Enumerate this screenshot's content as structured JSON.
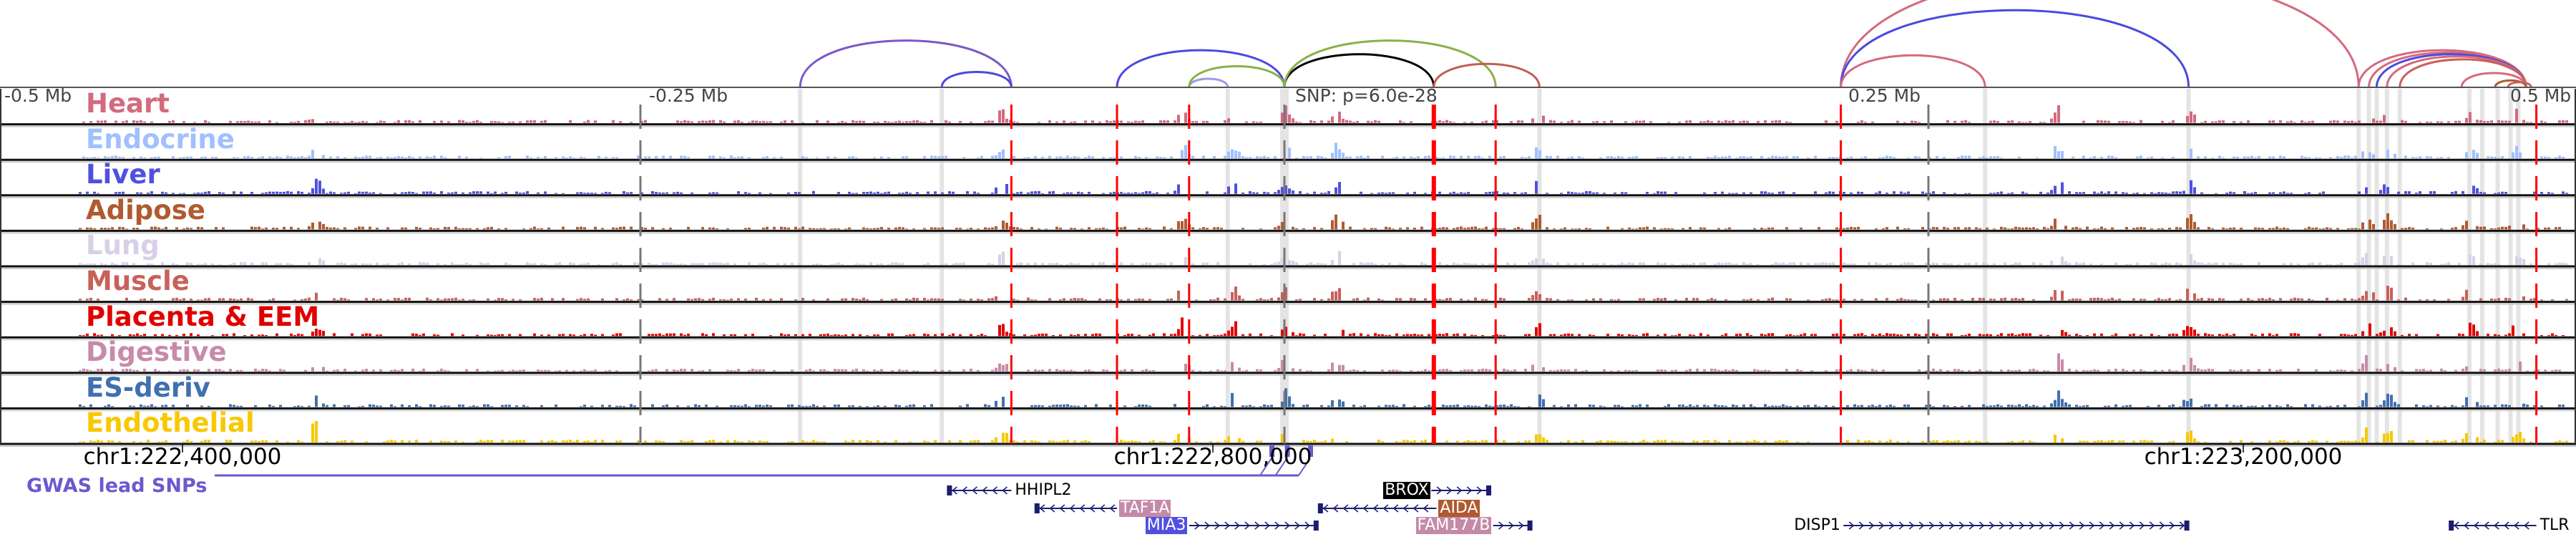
{
  "axis": {
    "labels": [
      {
        "text": "-0.5 Mb",
        "kb": -500
      },
      {
        "text": "-0.25 Mb",
        "kb": -250
      },
      {
        "text": "0.25 Mb",
        "kb": 250
      },
      {
        "text": "0.5 Mb",
        "kb": 500
      }
    ],
    "snp_label": "SNP: p=6.0e-28",
    "chr_ticks": [
      {
        "text": "chr1:222,400,000",
        "kb": -400
      },
      {
        "text": "chr1:222,800,000",
        "kb": 0
      },
      {
        "text": "chr1:223,200,000",
        "kb": 400
      }
    ]
  },
  "tracks": [
    {
      "label": "Heart",
      "color": "#d46a7e"
    },
    {
      "label": "Endocrine",
      "color": "#a0c0ff"
    },
    {
      "label": "Liver",
      "color": "#5050e0"
    },
    {
      "label": "Adipose",
      "color": "#b05a30"
    },
    {
      "label": "Lung",
      "color": "#d8d0e8"
    },
    {
      "label": "Muscle",
      "color": "#c8605a"
    },
    {
      "label": "Placenta & EEM",
      "color": "#e00000"
    },
    {
      "label": "Digestive",
      "color": "#c88aaa"
    },
    {
      "label": "ES-deriv",
      "color": "#4070b0"
    },
    {
      "label": "Endothelial",
      "color": "#f8c800"
    }
  ],
  "red_lines_kb": [
    -106,
    -65,
    -37,
    58,
    82,
    216,
    486
  ],
  "thick_red_lines_kb": [
    58
  ],
  "gray_dashed_kb": [
    -250,
    0,
    250
  ],
  "gray_bands_kb": [
    -188,
    -133,
    -22,
    0,
    99,
    272,
    351,
    417,
    421,
    424,
    428,
    433,
    460,
    465,
    471,
    476,
    479
  ],
  "signal_peaks_kb": [
    -376,
    -110,
    -40,
    -20,
    0,
    20,
    98,
    300,
    351,
    420,
    428,
    460,
    478
  ],
  "loops": [
    {
      "start": -188,
      "end": -106,
      "color": "#7a58c8"
    },
    {
      "start": -133,
      "end": -106,
      "color": "#4a4ae0"
    },
    {
      "start": -65,
      "end": 0,
      "color": "#4a4ae0"
    },
    {
      "start": -37,
      "end": -22,
      "color": "#9a9ae8"
    },
    {
      "start": -37,
      "end": 0,
      "color": "#8ab04a"
    },
    {
      "start": 0,
      "end": 58,
      "color": "#000000"
    },
    {
      "start": 0,
      "end": 82,
      "color": "#8ab04a"
    },
    {
      "start": 58,
      "end": 99,
      "color": "#c06050"
    },
    {
      "start": 216,
      "end": 417,
      "color": "#d46a7e"
    },
    {
      "start": 216,
      "end": 351,
      "color": "#4a4ae0"
    },
    {
      "start": 216,
      "end": 272,
      "color": "#d46a7e"
    },
    {
      "start": 417,
      "end": 482,
      "color": "#d46a7e"
    },
    {
      "start": 421,
      "end": 482,
      "color": "#d46a7e"
    },
    {
      "start": 424,
      "end": 482,
      "color": "#4a4ae0"
    },
    {
      "start": 428,
      "end": 482,
      "color": "#d46a7e"
    },
    {
      "start": 433,
      "end": 482,
      "color": "#c8605a"
    },
    {
      "start": 457,
      "end": 482,
      "color": "#d46a7e"
    },
    {
      "start": 470,
      "end": 482,
      "color": "#b05a30"
    },
    {
      "start": 475,
      "end": 484,
      "color": "#c8605a"
    }
  ],
  "gwas": {
    "label": "GWAS lead SNPs",
    "color": "#6a5acd",
    "snps_kb": [
      -5,
      1,
      10
    ]
  },
  "genes": [
    {
      "name": "HHIPL2",
      "start": -131,
      "end": -106,
      "strand": "-",
      "row": 0,
      "label_side": "right",
      "bg": "",
      "fg": "#000000"
    },
    {
      "name": "TAF1A",
      "start": -97,
      "end": -65,
      "strand": "-",
      "row": 1,
      "label_side": "right",
      "bg": "#c48aa8",
      "fg": "#ffffff"
    },
    {
      "name": "MIA3",
      "start": -37,
      "end": 13,
      "strand": "+",
      "row": 2,
      "label_side": "left",
      "bg": "#5050e0",
      "fg": "#ffffff"
    },
    {
      "name": "BROX",
      "start": 57,
      "end": 80,
      "strand": "+",
      "row": 0,
      "label_side": "left",
      "bg": "#000000",
      "fg": "#ffffff"
    },
    {
      "name": "AIDA",
      "start": 13,
      "end": 59,
      "strand": "-",
      "row": 1,
      "label_side": "right",
      "bg": "#b05a30",
      "fg": "#ffffff"
    },
    {
      "name": "FAM177B",
      "start": 81,
      "end": 96,
      "strand": "+",
      "row": 2,
      "label_side": "left",
      "bg": "#c48aa8",
      "fg": "#ffffff"
    },
    {
      "name": "DISP1",
      "start": 217,
      "end": 351,
      "strand": "+",
      "row": 2,
      "label_side": "left",
      "bg": "",
      "fg": "#000000"
    },
    {
      "name": "TLR",
      "start": 452,
      "end": 486,
      "strand": "-",
      "row": 2,
      "label_side": "right",
      "bg": "",
      "fg": "#000000"
    }
  ]
}
